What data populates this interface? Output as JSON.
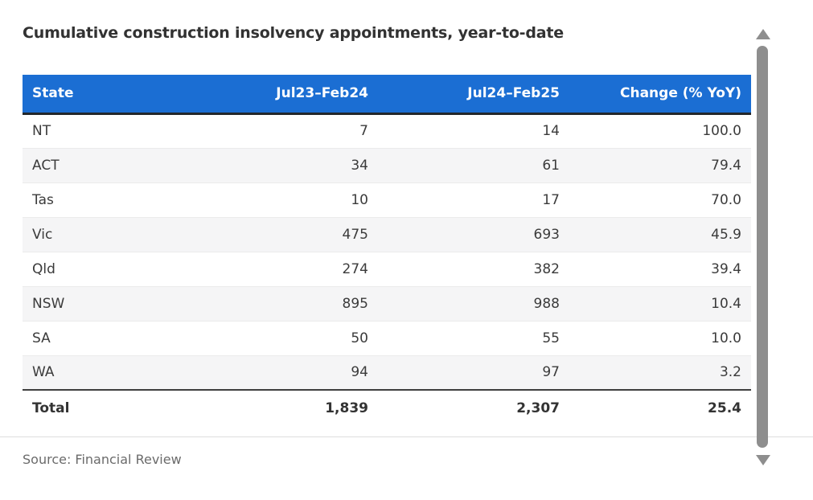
{
  "title": "Cumulative construction insolvency appointments, year-to-date",
  "source": "Source: Financial Review",
  "colors": {
    "header_bg": "#1b6ed3",
    "header_text": "#ffffff",
    "row_alt_bg": "#f5f5f6",
    "body_text": "#3b3b3b",
    "title_text": "#323232",
    "source_text": "#6b6b6b",
    "scrollbar": "#8e8e8e",
    "header_bottom_border": "#23272b",
    "total_top_border": "#3f3f3f"
  },
  "icons": {
    "scroll_up": "up-triangle",
    "scroll_down": "down-triangle"
  },
  "chart_data": {
    "type": "table",
    "title": "Cumulative construction insolvency appointments, year-to-date",
    "columns": [
      "State",
      "Jul23–Feb24",
      "Jul24–Feb25",
      "Change (% YoY)"
    ],
    "rows": [
      [
        "NT",
        "7",
        "14",
        "100.0"
      ],
      [
        "ACT",
        "34",
        "61",
        "79.4"
      ],
      [
        "Tas",
        "10",
        "17",
        "70.0"
      ],
      [
        "Vic",
        "475",
        "693",
        "45.9"
      ],
      [
        "Qld",
        "274",
        "382",
        "39.4"
      ],
      [
        "NSW",
        "895",
        "988",
        "10.4"
      ],
      [
        "SA",
        "50",
        "55",
        "10.0"
      ],
      [
        "WA",
        "94",
        "97",
        "3.2"
      ]
    ],
    "total_row": [
      "Total",
      "1,839",
      "2,307",
      "25.4"
    ],
    "source": "Source: Financial Review"
  }
}
